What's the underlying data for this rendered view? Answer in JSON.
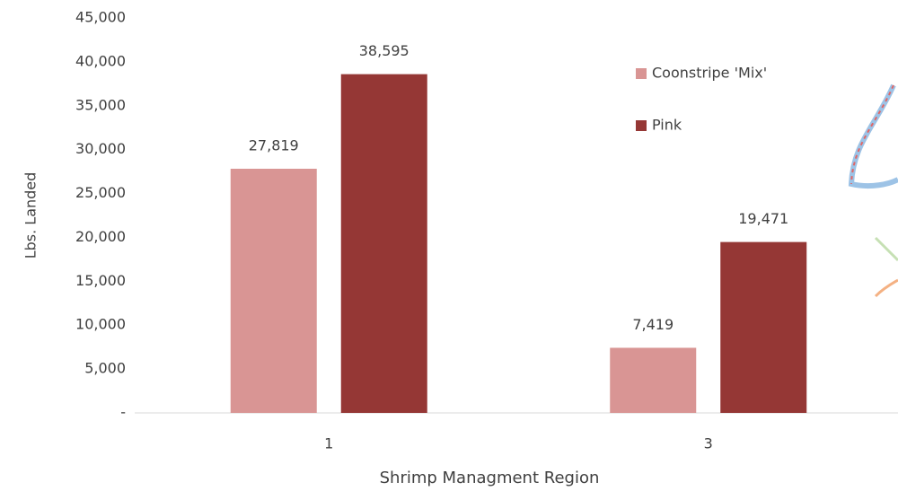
{
  "chart_data": {
    "type": "bar",
    "x_label": "Shrimp Managment Region",
    "y_label": "Lbs. Landed",
    "categories": [
      "1",
      "3"
    ],
    "series": [
      {
        "name": "Coonstripe 'Mix'",
        "color": "#d99594",
        "values": [
          27819,
          7419
        ],
        "value_labels": [
          "27,819",
          "7,419"
        ]
      },
      {
        "name": "Pink",
        "color": "#953735",
        "values": [
          38595,
          19471
        ],
        "value_labels": [
          "38,595",
          "19,471"
        ]
      }
    ],
    "ylim": [
      0,
      45000
    ],
    "yticks": [
      {
        "value": 0,
        "label": "-"
      },
      {
        "value": 5000,
        "label": "5,000"
      },
      {
        "value": 10000,
        "label": "10,000"
      },
      {
        "value": 15000,
        "label": "15,000"
      },
      {
        "value": 20000,
        "label": "20,000"
      },
      {
        "value": 25000,
        "label": "25,000"
      },
      {
        "value": 30000,
        "label": "30,000"
      },
      {
        "value": 35000,
        "label": "35,000"
      },
      {
        "value": 40000,
        "label": "40,000"
      },
      {
        "value": 45000,
        "label": "45,000"
      }
    ],
    "grid": false,
    "legend": "upper right"
  }
}
